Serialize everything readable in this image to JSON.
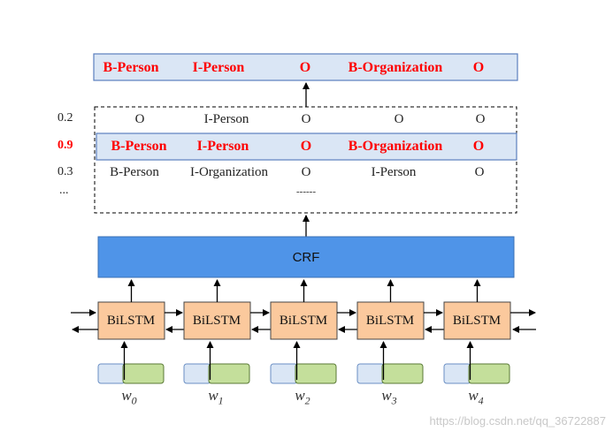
{
  "best_path": [
    "B-Person",
    "I-Person",
    "O",
    "B-Organization",
    "O"
  ],
  "candidates": [
    {
      "score": "0.2",
      "labels": [
        "O",
        "I-Person",
        "O",
        "O",
        "O"
      ],
      "highlight": false
    },
    {
      "score": "0.9",
      "labels": [
        "B-Person",
        "I-Person",
        "O",
        "B-Organization",
        "O"
      ],
      "highlight": true
    },
    {
      "score": "0.3",
      "labels": [
        "B-Person",
        "I-Organization",
        "O",
        "I-Person",
        "O"
      ],
      "highlight": false
    }
  ],
  "ellipsis_left": "...",
  "ellipsis_mid": "------",
  "crf_label": "CRF",
  "bilstm_label": "BiLSTM",
  "inputs": [
    {
      "base": "w",
      "sub": "0"
    },
    {
      "base": "w",
      "sub": "1"
    },
    {
      "base": "w",
      "sub": "2"
    },
    {
      "base": "w",
      "sub": "3"
    },
    {
      "base": "w",
      "sub": "4"
    }
  ],
  "watermark": "https://blog.csdn.net/qq_36722887",
  "colors": {
    "highlight_fill": "#dae6f5",
    "highlight_stroke": "#5b7fbf",
    "crf_fill": "#4f94e8",
    "lstm_fill": "#fbc99d",
    "embed_left": "#dae6f5",
    "embed_right": "#c4df9b",
    "red_text": "#ff0000"
  }
}
